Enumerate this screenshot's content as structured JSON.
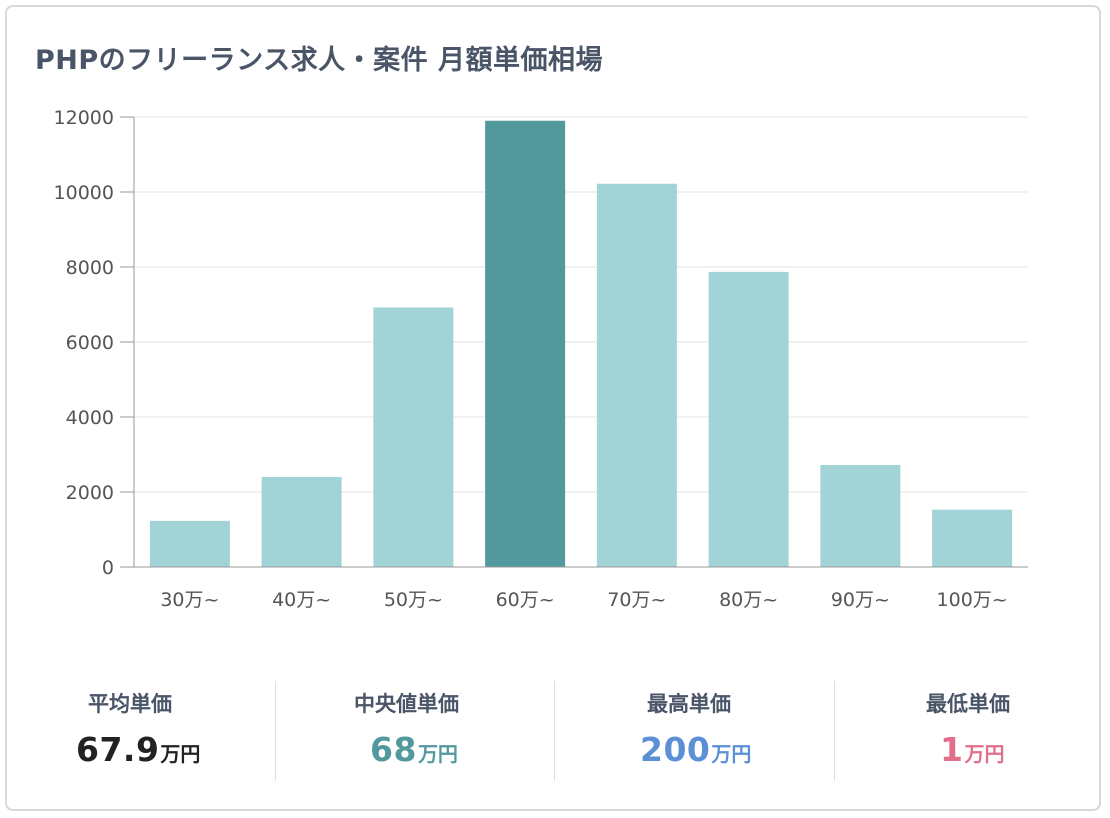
{
  "title": "PHPのフリーランス求人・案件 月額単価相場",
  "chart_data": {
    "type": "bar",
    "categories": [
      "30万~",
      "40万~",
      "50万~",
      "60万~",
      "70万~",
      "80万~",
      "90万~",
      "100万~"
    ],
    "values": [
      1230,
      2400,
      6920,
      11900,
      10220,
      7870,
      2720,
      1530
    ],
    "highlight_index": 3,
    "highlight_color": "#52999e",
    "bar_color": "#a2d3d7",
    "ylim": [
      0,
      12000
    ],
    "yticks": [
      0,
      2000,
      4000,
      6000,
      8000,
      10000,
      12000
    ],
    "grid": true,
    "legend": "none",
    "xlabel": "",
    "ylabel": ""
  },
  "stats": [
    {
      "label": "平均単価",
      "value": "67.9",
      "unit": "万円",
      "color": "#222222"
    },
    {
      "label": "中央値単価",
      "value": "68",
      "unit": "万円",
      "color": "#52999e"
    },
    {
      "label": "最高単価",
      "value": "200",
      "unit": "万円",
      "color": "#5b8fd6"
    },
    {
      "label": "最低単価",
      "value": "1",
      "unit": "万円",
      "color": "#e06f8b"
    }
  ]
}
